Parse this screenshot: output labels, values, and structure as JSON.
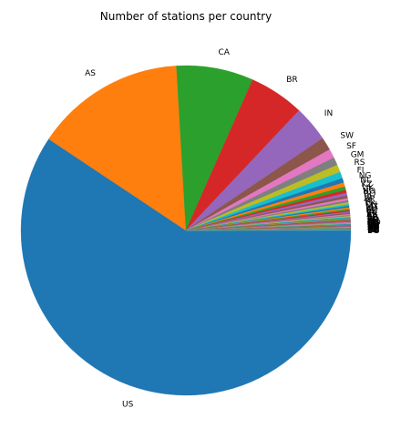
{
  "chart_data": {
    "type": "pie",
    "title": "Number of stations per country",
    "start_angle_deg": 0,
    "direction": "clockwise",
    "slices": [
      {
        "label": "US",
        "value": 60.5,
        "color": "#1f77b4"
      },
      {
        "label": "AS",
        "value": 15.0,
        "color": "#ff7f0e"
      },
      {
        "label": "CA",
        "value": 7.7,
        "color": "#2ca02c"
      },
      {
        "label": "BR",
        "value": 5.5,
        "color": "#d62728"
      },
      {
        "label": "IN",
        "value": 3.6,
        "color": "#9467bd"
      },
      {
        "label": "SW",
        "value": 1.3,
        "color": "#8c564b"
      },
      {
        "label": "SF",
        "value": 0.9,
        "color": "#e377c2"
      },
      {
        "label": "GM",
        "value": 0.8,
        "color": "#7f7f7f"
      },
      {
        "label": "RS",
        "value": 0.75,
        "color": "#bcbd22"
      },
      {
        "label": "FI",
        "value": 0.65,
        "color": "#17becf"
      },
      {
        "label": "NG",
        "value": 0.45,
        "color": "#1f77b4"
      },
      {
        "label": "NL",
        "value": 0.4,
        "color": "#ff7f0e"
      },
      {
        "label": "KZ",
        "value": 0.35,
        "color": "#2ca02c"
      },
      {
        "label": "UK",
        "value": 0.3,
        "color": "#d62728"
      },
      {
        "label": "NO",
        "value": 0.28,
        "color": "#9467bd"
      },
      {
        "label": "RQ",
        "value": 0.25,
        "color": "#8c564b"
      },
      {
        "label": "JA",
        "value": 0.22,
        "color": "#e377c2"
      },
      {
        "label": "SP",
        "value": 0.2,
        "color": "#7f7f7f"
      },
      {
        "label": "IT",
        "value": 0.18,
        "color": "#bcbd22"
      },
      {
        "label": "FR",
        "value": 0.17,
        "color": "#17becf"
      },
      {
        "label": "CH",
        "value": 0.16,
        "color": "#1f77b4"
      },
      {
        "label": "MX",
        "value": 0.15,
        "color": "#ff7f0e"
      },
      {
        "label": "PL",
        "value": 0.14,
        "color": "#2ca02c"
      },
      {
        "label": "AU",
        "value": 0.13,
        "color": "#d62728"
      },
      {
        "label": "EZ",
        "value": 0.12,
        "color": "#9467bd"
      },
      {
        "label": "TU",
        "value": 0.11,
        "color": "#8c564b"
      },
      {
        "label": "IR",
        "value": 0.1,
        "color": "#e377c2"
      },
      {
        "label": "AR",
        "value": 0.1,
        "color": "#7f7f7f"
      },
      {
        "label": "CI",
        "value": 0.09,
        "color": "#bcbd22"
      },
      {
        "label": "SA",
        "value": 0.09,
        "color": "#17becf"
      },
      {
        "label": "EG",
        "value": 0.08,
        "color": "#1f77b4"
      },
      {
        "label": "PK",
        "value": 0.08,
        "color": "#ff7f0e"
      },
      {
        "label": "GR",
        "value": 0.07,
        "color": "#2ca02c"
      },
      {
        "label": "RO",
        "value": 0.07,
        "color": "#d62728"
      },
      {
        "label": "HU",
        "value": 0.06,
        "color": "#9467bd"
      },
      {
        "label": "BL",
        "value": 0.06,
        "color": "#8c564b"
      },
      {
        "label": "AG",
        "value": 0.06,
        "color": "#e377c2"
      },
      {
        "label": "MO",
        "value": 0.05,
        "color": "#7f7f7f"
      },
      {
        "label": "PE",
        "value": 0.05,
        "color": "#bcbd22"
      },
      {
        "label": "CO",
        "value": 0.05,
        "color": "#17becf"
      },
      {
        "label": "VE",
        "value": 0.05,
        "color": "#1f77b4"
      },
      {
        "label": "ID",
        "value": 0.04,
        "color": "#ff7f0e"
      },
      {
        "label": "TH",
        "value": 0.04,
        "color": "#2ca02c"
      },
      {
        "label": "MY",
        "value": 0.04,
        "color": "#d62728"
      },
      {
        "label": "VM",
        "value": 0.04,
        "color": "#9467bd"
      },
      {
        "label": "KS",
        "value": 0.04,
        "color": "#8c564b"
      },
      {
        "label": "NZ",
        "value": 0.03,
        "color": "#e377c2"
      },
      {
        "label": "DA",
        "value": 0.03,
        "color": "#7f7f7f"
      },
      {
        "label": "AU",
        "value": 0.03,
        "color": "#bcbd22"
      },
      {
        "label": "BE",
        "value": 0.03,
        "color": "#17becf"
      },
      {
        "label": "PO",
        "value": 0.03,
        "color": "#1f77b4"
      },
      {
        "label": "EI",
        "value": 0.03,
        "color": "#ff7f0e"
      },
      {
        "label": "IC",
        "value": 0.03,
        "color": "#2ca02c"
      },
      {
        "label": "LU",
        "value": 0.02,
        "color": "#d62728"
      },
      {
        "label": "KE",
        "value": 0.02,
        "color": "#9467bd"
      },
      {
        "label": "ET",
        "value": 0.02,
        "color": "#8c564b"
      },
      {
        "label": "TZ",
        "value": 0.02,
        "color": "#e377c2"
      },
      {
        "label": "UG",
        "value": 0.02,
        "color": "#7f7f7f"
      },
      {
        "label": "SU",
        "value": 0.02,
        "color": "#bcbd22"
      },
      {
        "label": "BG",
        "value": 0.02,
        "color": "#17becf"
      }
    ]
  }
}
